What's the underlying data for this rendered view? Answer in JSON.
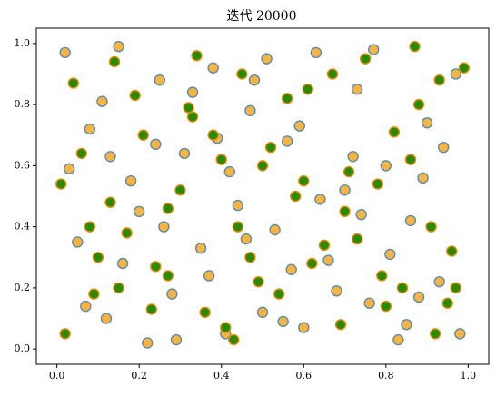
{
  "chart_data": {
    "type": "scatter",
    "title": "迭代 20000",
    "xlim": [
      -0.05,
      1.05
    ],
    "ylim": [
      -0.05,
      1.05
    ],
    "xticks": [
      {
        "value": 0,
        "label": "0.0"
      },
      {
        "value": 0.2,
        "label": "0.2"
      },
      {
        "value": 0.4,
        "label": "0.4"
      },
      {
        "value": 0.6,
        "label": "0.6"
      },
      {
        "value": 0.8,
        "label": "0.8"
      },
      {
        "value": 1,
        "label": "1.0"
      }
    ],
    "yticks": [
      {
        "value": 0,
        "label": "0.0"
      },
      {
        "value": 0.2,
        "label": "0.2"
      },
      {
        "value": 0.4,
        "label": "0.4"
      },
      {
        "value": 0.6,
        "label": "0.6"
      },
      {
        "value": 0.8,
        "label": "0.8"
      },
      {
        "value": 1,
        "label": "1.0"
      }
    ],
    "grid": false,
    "series": [
      {
        "color": "#f7b442",
        "edgecolor": "#5b8ea6",
        "x": [
          0.02,
          0.05,
          0.08,
          0.12,
          0.15,
          0.18,
          0.22,
          0.25,
          0.28,
          0.31,
          0.35,
          0.38,
          0.41,
          0.44,
          0.47,
          0.5,
          0.53,
          0.56,
          0.6,
          0.63,
          0.66,
          0.7,
          0.73,
          0.76,
          0.8,
          0.83,
          0.86,
          0.9,
          0.93,
          0.97,
          0.03,
          0.07,
          0.11,
          0.16,
          0.2,
          0.24,
          0.29,
          0.33,
          0.37,
          0.42,
          0.46,
          0.51,
          0.55,
          0.59,
          0.64,
          0.68,
          0.72,
          0.77,
          0.81,
          0.85,
          0.89,
          0.94,
          0.98,
          0.26,
          0.39,
          0.57,
          0.74,
          0.88,
          0.13,
          0.48
        ],
        "values": [
          0.97,
          0.35,
          0.72,
          0.1,
          0.99,
          0.55,
          0.02,
          0.88,
          0.18,
          0.64,
          0.33,
          0.92,
          0.05,
          0.47,
          0.78,
          0.12,
          0.39,
          0.68,
          0.07,
          0.97,
          0.29,
          0.52,
          0.85,
          0.15,
          0.6,
          0.03,
          0.42,
          0.74,
          0.22,
          0.9,
          0.59,
          0.14,
          0.81,
          0.28,
          0.45,
          0.67,
          0.03,
          0.84,
          0.24,
          0.58,
          0.36,
          0.95,
          0.09,
          0.73,
          0.49,
          0.19,
          0.63,
          0.98,
          0.31,
          0.08,
          0.56,
          0.66,
          0.05,
          0.4,
          0.69,
          0.26,
          0.44,
          0.17,
          0.63,
          0.88
        ]
      },
      {
        "color": "#2a8a00",
        "edgecolor": "#e8890c",
        "x": [
          0.01,
          0.04,
          0.09,
          0.14,
          0.17,
          0.21,
          0.24,
          0.27,
          0.32,
          0.36,
          0.4,
          0.43,
          0.45,
          0.49,
          0.52,
          0.58,
          0.61,
          0.65,
          0.69,
          0.71,
          0.75,
          0.79,
          0.82,
          0.87,
          0.91,
          0.95,
          0.99,
          0.06,
          0.1,
          0.19,
          0.23,
          0.3,
          0.34,
          0.38,
          0.44,
          0.5,
          0.54,
          0.62,
          0.67,
          0.7,
          0.78,
          0.84,
          0.88,
          0.92,
          0.96,
          0.02,
          0.13,
          0.27,
          0.41,
          0.56,
          0.73,
          0.86,
          0.97,
          0.08,
          0.33,
          0.6,
          0.8,
          0.15,
          0.47,
          0.93
        ],
        "values": [
          0.54,
          0.87,
          0.18,
          0.94,
          0.38,
          0.7,
          0.27,
          0.46,
          0.79,
          0.12,
          0.62,
          0.03,
          0.9,
          0.22,
          0.66,
          0.5,
          0.85,
          0.34,
          0.08,
          0.58,
          0.95,
          0.24,
          0.71,
          0.99,
          0.4,
          0.15,
          0.92,
          0.64,
          0.3,
          0.83,
          0.13,
          0.52,
          0.96,
          0.7,
          0.4,
          0.6,
          0.18,
          0.28,
          0.9,
          0.45,
          0.54,
          0.2,
          0.8,
          0.05,
          0.32,
          0.05,
          0.48,
          0.24,
          0.07,
          0.82,
          0.36,
          0.62,
          0.2,
          0.4,
          0.76,
          0.55,
          0.14,
          0.2,
          0.3,
          0.88
        ]
      }
    ]
  }
}
